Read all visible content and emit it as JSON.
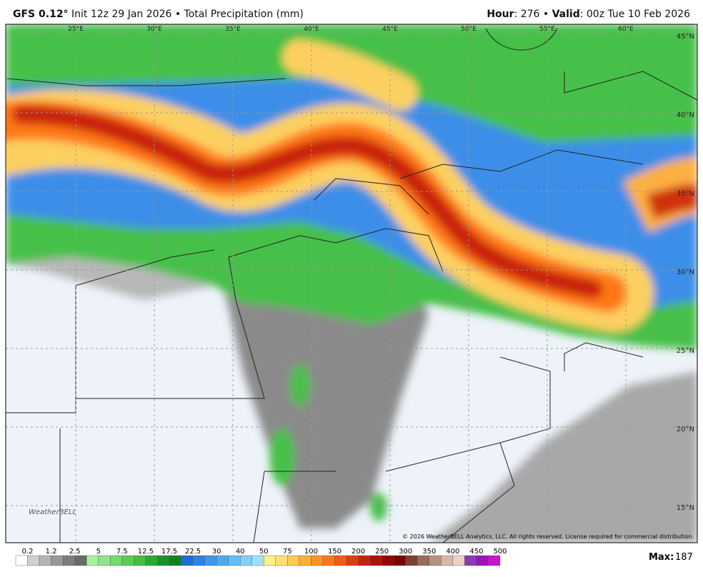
{
  "header": {
    "model": "GFS 0.12°",
    "description": "Init 12z 29 Jan 2026 • Total Precipitation (mm)",
    "hour_label": "Hour",
    "hour_value": ": 276 • ",
    "valid_label": "Valid",
    "valid_value": ": 00z Tue 10 Feb 2026"
  },
  "map": {
    "lon_labels": [
      "25°E",
      "30°E",
      "35°E",
      "40°E",
      "45°E",
      "50°E",
      "55°E",
      "60°E"
    ],
    "lat_labels": [
      "45°N",
      "40°N",
      "35°N",
      "30°N",
      "25°N",
      "20°N",
      "15°N"
    ],
    "copyright": "© 2026 WeatherBELL Analytics, LLC. All rights reserved. License required for commercial distribution.",
    "logo": "WeatherBELL"
  },
  "colorbar": {
    "labels": [
      "0.2",
      "1.2",
      "2.5",
      "5",
      "7.5",
      "12.5",
      "17.5",
      "22.5",
      "30",
      "40",
      "50",
      "75",
      "100",
      "150",
      "200",
      "250",
      "300",
      "350",
      "400",
      "450",
      "500"
    ],
    "colors": [
      "#ffffff",
      "#d0d0d0",
      "#b4b4b4",
      "#989898",
      "#7c7c7c",
      "#6a6a6a",
      "#a8f0a0",
      "#90e488",
      "#76d870",
      "#5ccc58",
      "#42c040",
      "#2aaa2e",
      "#1a942a",
      "#148020",
      "#1e6ed8",
      "#2a82e6",
      "#3a96f0",
      "#4eaaf4",
      "#64befa",
      "#80d0fc",
      "#a0e0fe",
      "#fff08c",
      "#ffe070",
      "#ffcc50",
      "#ffb030",
      "#ff9420",
      "#ff7818",
      "#f55a12",
      "#e03c0e",
      "#c8200a",
      "#b01008",
      "#960606",
      "#7a0404",
      "#7a4030",
      "#9a6a5a",
      "#b89080",
      "#d8b8a8",
      "#e8d0c8",
      "#8a3ab0",
      "#a010c0",
      "#d010d0"
    ]
  },
  "max": {
    "label": "Max:",
    "value": "187"
  }
}
